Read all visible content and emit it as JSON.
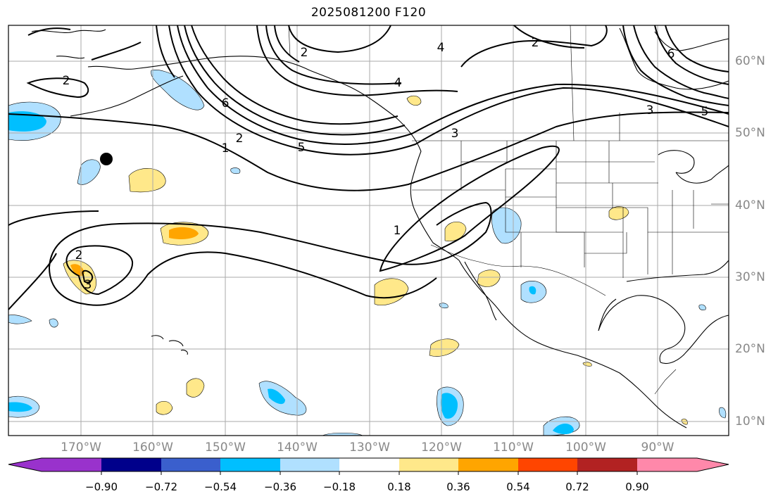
{
  "title": "2025081200 F120",
  "map": {
    "lat_labels": [
      "60°N",
      "50°N",
      "40°N",
      "30°N",
      "20°N",
      "10°N"
    ],
    "lon_labels": [
      "170°W",
      "160°W",
      "150°W",
      "140°W",
      "130°W",
      "120°W",
      "110°W",
      "100°W",
      "90°W"
    ],
    "contour_labels": [
      "2",
      "2",
      "4",
      "2",
      "4",
      "6",
      "6",
      "1",
      "2",
      "5",
      "3",
      "3",
      "5",
      "1",
      "2",
      "3"
    ]
  },
  "colorbar": {
    "ticks": [
      "−0.90",
      "−0.72",
      "−0.54",
      "−0.36",
      "−0.18",
      "0.18",
      "0.36",
      "0.54",
      "0.72",
      "0.90"
    ],
    "colors": [
      "#9932cc",
      "#00008b",
      "#3a5fcd",
      "#00bfff",
      "#b0e0ff",
      "#ffffff",
      "#ffe88a",
      "#ffa500",
      "#ff4500",
      "#b22222",
      "#ff88aa"
    ]
  }
}
